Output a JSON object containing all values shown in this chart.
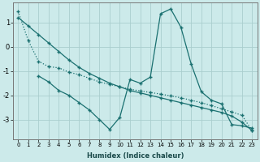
{
  "xlabel": "Humidex (Indice chaleur)",
  "bg_color": "#cceaea",
  "grid_color": "#aacece",
  "line_color": "#1a7070",
  "line1_x": [
    0,
    1,
    2,
    3,
    4,
    5,
    6,
    7,
    8,
    9,
    10,
    11,
    12,
    13,
    14,
    15,
    16,
    17,
    18,
    19,
    20,
    21,
    22,
    23
  ],
  "line1_y": [
    1.45,
    0.25,
    -0.6,
    -0.82,
    -0.87,
    -1.05,
    -1.15,
    -1.3,
    -1.45,
    -1.55,
    -1.65,
    -1.75,
    -1.82,
    -1.88,
    -1.95,
    -2.02,
    -2.1,
    -2.2,
    -2.3,
    -2.42,
    -2.55,
    -2.68,
    -2.82,
    -3.45
  ],
  "line2_x": [
    2,
    3,
    4,
    5,
    6,
    7,
    8,
    9,
    10,
    11,
    12,
    13,
    14,
    15,
    16,
    17,
    18,
    19,
    20,
    21,
    22,
    23
  ],
  "line2_y": [
    -1.2,
    -1.45,
    -1.8,
    -2.0,
    -2.3,
    -2.6,
    -3.0,
    -3.4,
    -2.9,
    -1.35,
    -1.5,
    -1.25,
    1.35,
    1.55,
    0.8,
    -0.7,
    -1.85,
    -2.2,
    -2.35,
    -3.2,
    -3.25,
    -3.35
  ],
  "line3_x": [
    0,
    1,
    2,
    3,
    4,
    5,
    6,
    7,
    8,
    9,
    10,
    11,
    12,
    13,
    14,
    15,
    16,
    17,
    18,
    19,
    20,
    21,
    22,
    23
  ],
  "line3_y": [
    1.2,
    0.85,
    0.5,
    0.15,
    -0.2,
    -0.55,
    -0.85,
    -1.1,
    -1.3,
    -1.5,
    -1.65,
    -1.8,
    -1.9,
    -2.0,
    -2.1,
    -2.2,
    -2.3,
    -2.4,
    -2.5,
    -2.6,
    -2.7,
    -2.85,
    -3.1,
    -3.45
  ],
  "xlim": [
    -0.5,
    23.5
  ],
  "ylim": [
    -3.8,
    1.8
  ],
  "yticks": [
    -3,
    -2,
    -1,
    0,
    1
  ],
  "xticks": [
    0,
    1,
    2,
    3,
    4,
    5,
    6,
    7,
    8,
    9,
    10,
    11,
    12,
    13,
    14,
    15,
    16,
    17,
    18,
    19,
    20,
    21,
    22,
    23
  ]
}
